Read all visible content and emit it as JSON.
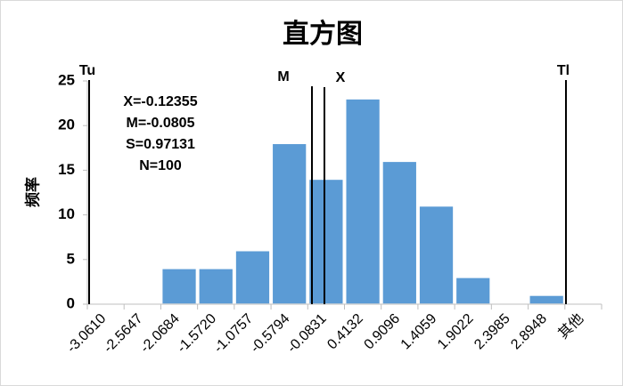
{
  "chart_data": {
    "type": "bar",
    "title": "直方图",
    "y_label": "频率",
    "categories": [
      "-3.0610",
      "-2.5647",
      "-2.0684",
      "-1.5720",
      "-1.0757",
      "-0.5794",
      "-0.0831",
      "0.4132",
      "0.9096",
      "1.4059",
      "1.9022",
      "2.3985",
      "2.8948",
      "其他"
    ],
    "values": [
      0,
      0,
      4,
      4,
      6,
      18,
      14,
      23,
      16,
      11,
      3,
      0,
      1,
      0
    ],
    "color": "#5b9bd5",
    "ylim": [
      0,
      25
    ],
    "yticks": [
      0,
      5,
      10,
      15,
      20,
      25
    ],
    "grid": false,
    "annotations": [
      "Tu",
      "M",
      "X",
      "Tl"
    ],
    "stats": [
      "X=-0.12355",
      "M=-0.0805",
      "S=0.97131",
      "N=100"
    ]
  }
}
